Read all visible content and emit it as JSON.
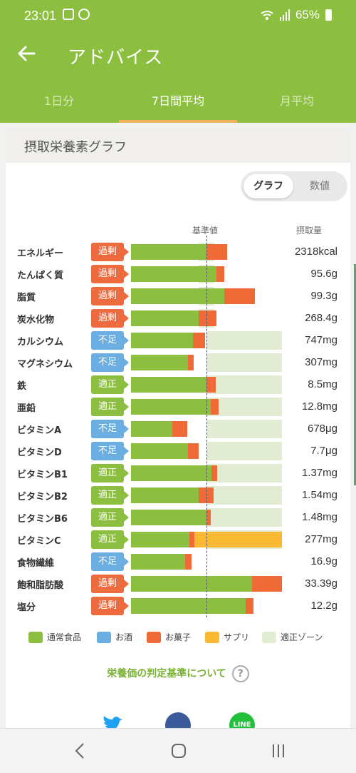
{
  "status": {
    "time": "23:01",
    "battery": "65%"
  },
  "header": {
    "title": "アドバイス"
  },
  "tabs": [
    {
      "label": "1日分"
    },
    {
      "label": "7日間平均"
    },
    {
      "label": "月平均"
    }
  ],
  "card": {
    "title": "摂取栄養素グラフ",
    "toggle": {
      "graph": "グラフ",
      "values": "数値"
    },
    "col_standard": "基準値",
    "col_intake": "摂取量"
  },
  "chart_data": {
    "type": "bar",
    "stacked": true,
    "standard_line_ratio": 1.0,
    "rows": [
      {
        "name": "エネルギー",
        "status": "過剰",
        "kind": "over",
        "amount": "2318kcal",
        "normal": 1.0,
        "snack": 0.27,
        "supp": 0,
        "zone": [
          0.9,
          1.1
        ]
      },
      {
        "name": "たんぱく質",
        "status": "過剰",
        "kind": "over",
        "amount": "95.6g",
        "normal": 1.13,
        "snack": 0.11,
        "supp": 0,
        "zone": [
          0.9,
          1.1
        ]
      },
      {
        "name": "脂質",
        "status": "過剰",
        "kind": "over",
        "amount": "99.3g",
        "normal": 1.24,
        "snack": 0.4,
        "supp": 0,
        "zone": [
          0.9,
          1.1
        ]
      },
      {
        "name": "炭水化物",
        "status": "過剰",
        "kind": "over",
        "amount": "268.4g",
        "normal": 0.9,
        "snack": 0.23,
        "supp": 0,
        "zone": [
          0.9,
          1.1
        ]
      },
      {
        "name": "カルシウム",
        "status": "不足",
        "kind": "under",
        "amount": "747mg",
        "normal": 0.82,
        "snack": 0.16,
        "supp": 0,
        "zone": [
          1.0,
          2.0
        ]
      },
      {
        "name": "マグネシウム",
        "status": "不足",
        "kind": "under",
        "amount": "307mg",
        "normal": 0.75,
        "snack": 0.08,
        "supp": 0,
        "zone": [
          1.0,
          2.0
        ]
      },
      {
        "name": "鉄",
        "status": "適正",
        "kind": "ok",
        "amount": "8.5mg",
        "normal": 1.0,
        "snack": 0.12,
        "supp": 0,
        "zone": [
          1.0,
          2.0
        ]
      },
      {
        "name": "亜鉛",
        "status": "適正",
        "kind": "ok",
        "amount": "12.8mg",
        "normal": 1.06,
        "snack": 0.1,
        "supp": 0,
        "zone": [
          1.0,
          2.0
        ]
      },
      {
        "name": "ビタミンA",
        "status": "不足",
        "kind": "under",
        "amount": "678μg",
        "normal": 0.55,
        "snack": 0.2,
        "supp": 0,
        "zone": [
          1.0,
          2.0
        ]
      },
      {
        "name": "ビタミンD",
        "status": "不足",
        "kind": "under",
        "amount": "7.7μg",
        "normal": 0.75,
        "snack": 0.15,
        "supp": 0,
        "zone": [
          1.0,
          2.0
        ]
      },
      {
        "name": "ビタミンB1",
        "status": "適正",
        "kind": "ok",
        "amount": "1.37mg",
        "normal": 1.07,
        "snack": 0.07,
        "supp": 0,
        "zone": [
          1.0,
          2.0
        ]
      },
      {
        "name": "ビタミンB2",
        "status": "適正",
        "kind": "ok",
        "amount": "1.54mg",
        "normal": 0.9,
        "snack": 0.19,
        "supp": 0,
        "zone": [
          1.0,
          2.0
        ]
      },
      {
        "name": "ビタミンB6",
        "status": "適正",
        "kind": "ok",
        "amount": "1.48mg",
        "normal": 1.0,
        "snack": 0.06,
        "supp": 0,
        "zone": [
          1.0,
          2.0
        ]
      },
      {
        "name": "ビタミンC",
        "status": "適正",
        "kind": "ok",
        "amount": "277mg",
        "normal": 0.77,
        "snack": 0.07,
        "supp": 1.16,
        "zone": [
          1.0,
          2.0
        ]
      },
      {
        "name": "食物繊維",
        "status": "不足",
        "kind": "under",
        "amount": "16.9g",
        "normal": 0.72,
        "snack": 0.08,
        "supp": 0,
        "zone": [
          1.0,
          1.0
        ]
      },
      {
        "name": "飽和脂肪酸",
        "status": "過剰",
        "kind": "over",
        "amount": "33.39g",
        "normal": 1.6,
        "snack": 0.4,
        "supp": 0,
        "zone": [
          0.0,
          0.0
        ]
      },
      {
        "name": "塩分",
        "status": "過剰",
        "kind": "over",
        "amount": "12.2g",
        "normal": 1.52,
        "snack": 0.1,
        "supp": 0,
        "zone": [
          0.0,
          0.0
        ]
      }
    ],
    "legend": [
      {
        "label": "通常食品",
        "color": "#8cbf3f"
      },
      {
        "label": "お酒",
        "color": "#6aaee2"
      },
      {
        "label": "お菓子",
        "color": "#f06a37"
      },
      {
        "label": "サプリ",
        "color": "#fbb933"
      },
      {
        "label": "適正ゾーン",
        "color": "#e2ecd3"
      }
    ]
  },
  "links": {
    "criteria": "栄養価の判定基準について",
    "line": "LINE"
  }
}
